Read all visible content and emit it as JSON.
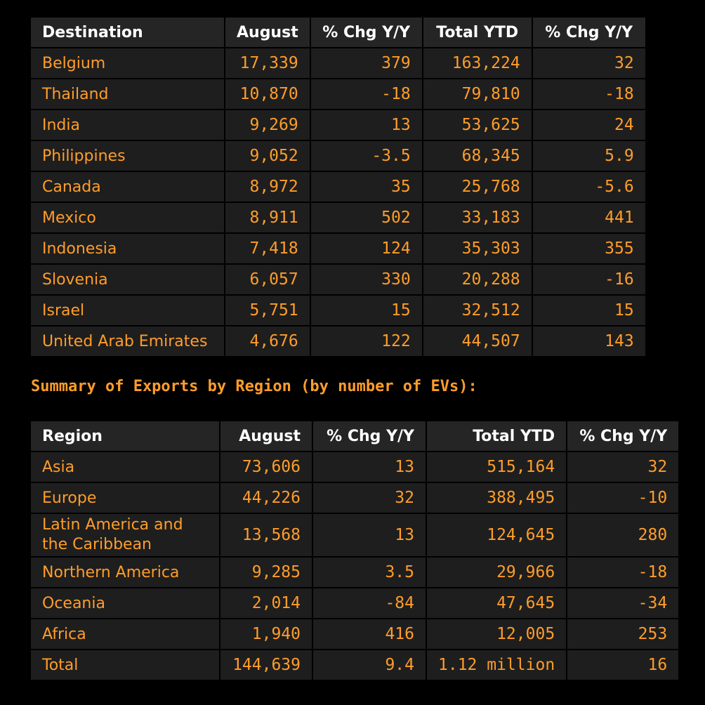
{
  "destination_table": {
    "headers": [
      "Destination",
      "August",
      "% Chg Y/Y",
      "Total YTD",
      "% Chg Y/Y"
    ],
    "rows": [
      [
        "Belgium",
        "17,339",
        "379",
        "163,224",
        "32"
      ],
      [
        "Thailand",
        "10,870",
        "-18",
        "79,810",
        "-18"
      ],
      [
        "India",
        "9,269",
        "13",
        "53,625",
        "24"
      ],
      [
        "Philippines",
        "9,052",
        "-3.5",
        "68,345",
        "5.9"
      ],
      [
        "Canada",
        "8,972",
        "35",
        "25,768",
        "-5.6"
      ],
      [
        "Mexico",
        "8,911",
        "502",
        "33,183",
        "441"
      ],
      [
        "Indonesia",
        "7,418",
        "124",
        "35,303",
        "355"
      ],
      [
        "Slovenia",
        "6,057",
        "330",
        "20,288",
        "-16"
      ],
      [
        "Israel",
        "5,751",
        "15",
        "32,512",
        "15"
      ],
      [
        "United Arab Emirates",
        "4,676",
        "122",
        "44,507",
        "143"
      ]
    ]
  },
  "region_section_title": "Summary of Exports by Region (by number of EVs):",
  "region_table": {
    "headers": [
      "Region",
      "August",
      "% Chg Y/Y",
      "Total YTD",
      "% Chg Y/Y"
    ],
    "rows": [
      [
        "Asia",
        "73,606",
        "13",
        "515,164",
        "32"
      ],
      [
        "Europe",
        "44,226",
        "32",
        "388,495",
        "-10"
      ],
      [
        "Latin America and the Caribbean",
        "13,568",
        "13",
        "124,645",
        "280"
      ],
      [
        "Northern America",
        "9,285",
        "3.5",
        "29,966",
        "-18"
      ],
      [
        "Oceania",
        "2,014",
        "-84",
        "47,645",
        "-34"
      ],
      [
        "Africa",
        "1,940",
        "416",
        "12,005",
        "253"
      ],
      [
        "Total",
        "144,639",
        "9.4",
        "1.12 million",
        "16"
      ]
    ]
  },
  "colors": {
    "background": "#000000",
    "cell_background": "#1e1e1e",
    "header_text": "#ffffff",
    "value_text": "#ff9d2a"
  }
}
